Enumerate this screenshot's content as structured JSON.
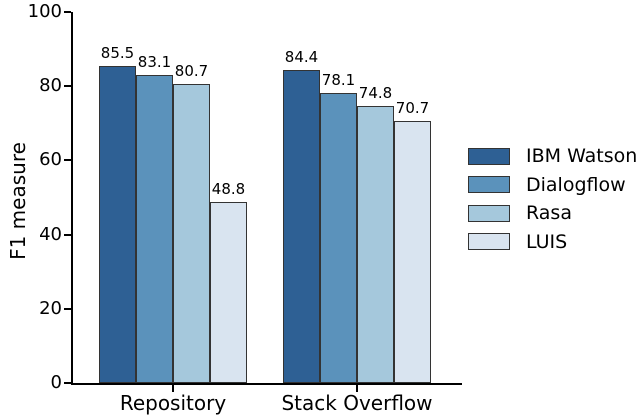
{
  "chart_data": {
    "type": "bar",
    "title": "",
    "xlabel": "",
    "ylabel": "F1 measure",
    "ylim": [
      0,
      100
    ],
    "yticks": [
      0,
      20,
      40,
      60,
      80,
      100
    ],
    "categories": [
      "Repository",
      "Stack Overflow"
    ],
    "series": [
      {
        "name": "IBM Watson",
        "color": "#2e6094",
        "values": [
          85.5,
          84.4
        ]
      },
      {
        "name": "Dialogflow",
        "color": "#5b92bb",
        "values": [
          83.1,
          78.1
        ]
      },
      {
        "name": "Rasa",
        "color": "#a5c8dc",
        "values": [
          80.7,
          74.8
        ]
      },
      {
        "name": "LUIS",
        "color": "#d9e4f0",
        "values": [
          48.8,
          70.7
        ]
      }
    ],
    "bar_labels": true,
    "grid": false,
    "legend_position": "right",
    "axis_color": "#000000",
    "bar_edge_color": "#333333"
  }
}
